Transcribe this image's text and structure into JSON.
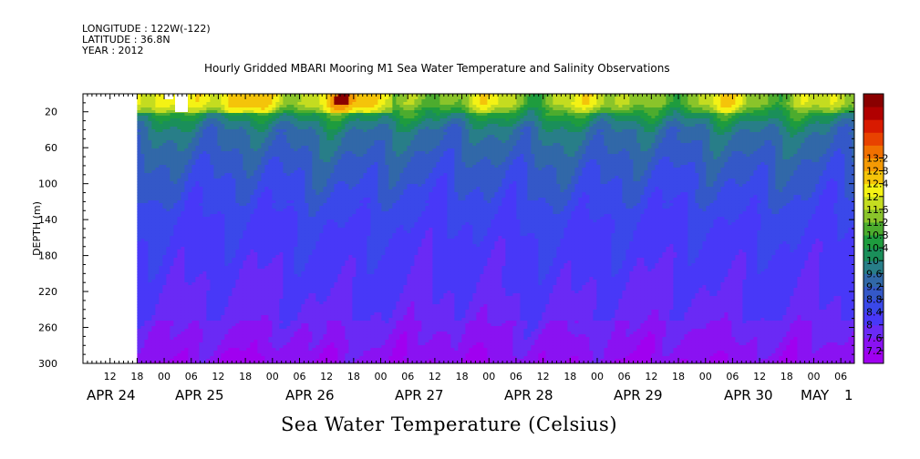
{
  "header": {
    "longitude": "LONGITUDE : 122W(-122)",
    "latitude": "LATITUDE : 36.8N",
    "year": "YEAR : 2012"
  },
  "chart_data": {
    "type": "heatmap",
    "title": "Hourly Gridded MBARI Mooring M1 Sea Water Temperature and Salinity Observations",
    "xlabel": "Sea Water Temperature (Celsius)",
    "ylabel": "DEPTH (m)",
    "y_axis": {
      "range": [
        300,
        0
      ],
      "inverted": true,
      "tick_values": [
        20,
        60,
        100,
        140,
        180,
        220,
        260,
        300
      ],
      "tick_labels": [
        "20",
        "60",
        "100",
        "140",
        "180",
        "220",
        "260",
        "300"
      ]
    },
    "x_axis": {
      "range": [
        "2012-04-24 06:00",
        "2012-05-01 09:00"
      ],
      "hour_labels": [
        "12",
        "18",
        "00",
        "06",
        "12",
        "18",
        "00",
        "06",
        "12",
        "18",
        "00",
        "06",
        "12",
        "18",
        "00",
        "06",
        "12",
        "18",
        "00",
        "06",
        "12",
        "18",
        "00",
        "06",
        "12",
        "18",
        "00",
        "06"
      ],
      "day_labels": [
        "APR 24",
        "APR 25",
        "APR 26",
        "APR 27",
        "APR 28",
        "APR 29",
        "APR 30",
        "MAY",
        "1"
      ]
    },
    "colorbar": {
      "levels": [
        7.2,
        7.6,
        8,
        8.4,
        8.8,
        9.2,
        9.6,
        10,
        10.4,
        10.8,
        11.2,
        11.6,
        12,
        12.4,
        12.8,
        13.2
      ],
      "labels": [
        "7.2",
        "7.6",
        "8",
        "8.4",
        "8.8",
        "9.2",
        "9.6",
        "10",
        "10.4",
        "10.8",
        "11.2",
        "11.6",
        "12",
        "12.4",
        "12.8",
        "13.2"
      ],
      "colors": [
        "#a000f0",
        "#8a12f2",
        "#6a2af5",
        "#4838f8",
        "#3a48ea",
        "#3458c8",
        "#3168a8",
        "#287e88",
        "#1a8f5a",
        "#1e9c3e",
        "#4cac2e",
        "#8ac42a",
        "#c4dc20",
        "#f4f214",
        "#f4c40a",
        "#f49a04",
        "#f07000",
        "#e84200",
        "#d81a00",
        "#b00000",
        "#8a0000"
      ]
    },
    "profile": {
      "depths": [
        10,
        20,
        30,
        40,
        60,
        80,
        100,
        120,
        140,
        160,
        180,
        200,
        220,
        240,
        260,
        280,
        300
      ],
      "temperature": [
        11.4,
        10.6,
        10.0,
        9.6,
        9.3,
        9.0,
        8.8,
        8.6,
        8.4,
        8.3,
        8.2,
        8.1,
        8.0,
        7.9,
        7.8,
        7.6,
        7.4
      ]
    },
    "data_start": "2012-04-24 18:00"
  }
}
